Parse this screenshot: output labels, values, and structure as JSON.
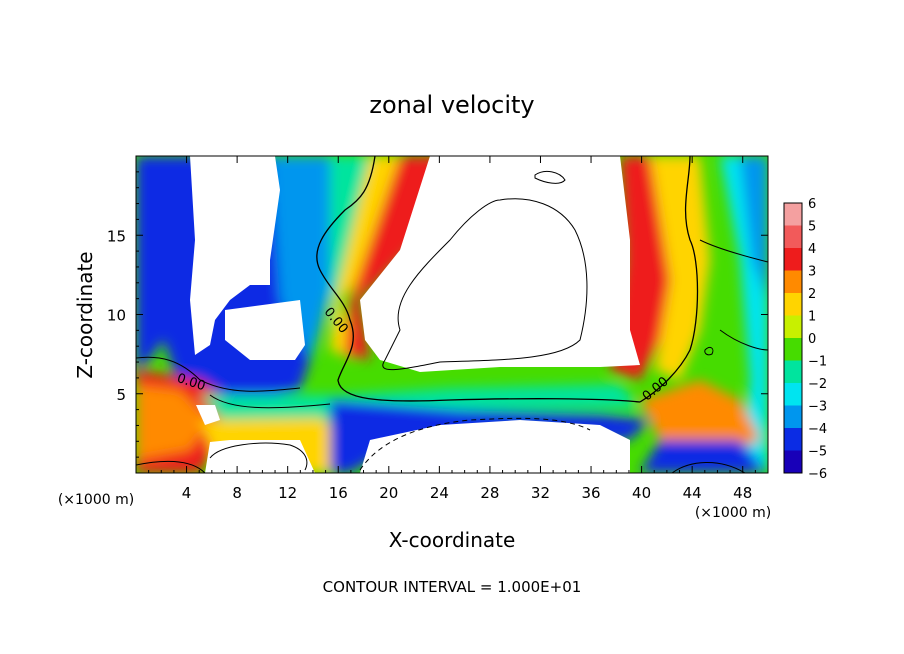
{
  "chart_data": {
    "type": "heatmap",
    "title": "zonal velocity",
    "xlabel": "X-coordinate",
    "ylabel": "Z-coordinate",
    "x_unit_note": "(×1000 m)",
    "x_unit_note_right": "(×1000 m)",
    "footer": "CONTOUR INTERVAL = 1.000E+01",
    "xlim": [
      0,
      50
    ],
    "ylim": [
      0,
      20
    ],
    "x_ticks": [
      4,
      8,
      12,
      16,
      20,
      24,
      28,
      32,
      36,
      40,
      44,
      48
    ],
    "y_ticks": [
      5,
      10,
      15
    ],
    "colorbar": {
      "levels": [
        6,
        5,
        4,
        3,
        2,
        1,
        0,
        -1,
        -2,
        -3,
        -4,
        -5,
        -6
      ],
      "colors": [
        "#f4a0a0",
        "#f25a5a",
        "#ee1c1c",
        "#ff8a00",
        "#ffd400",
        "#c8f000",
        "#46dc00",
        "#00e49e",
        "#00e4f0",
        "#0096ee",
        "#0b2ce4",
        "#1800b8",
        "#6a0aa0"
      ]
    },
    "contour_labels": [
      "0.00",
      "0.00",
      "0.00",
      "0.00"
    ],
    "fields": [
      {
        "region": "left-upper",
        "value": -6,
        "x": [
          1,
          10
        ],
        "z": [
          5,
          20
        ]
      },
      {
        "region": "lower-left",
        "value": 6,
        "x": [
          0,
          6
        ],
        "z": [
          0,
          6
        ]
      },
      {
        "region": "central-jet",
        "value": 3,
        "x": [
          16,
          40
        ],
        "z": [
          4,
          20
        ]
      },
      {
        "region": "central-core",
        "value": 8,
        "x": [
          18,
          38
        ],
        "z": [
          6,
          18
        ]
      },
      {
        "region": "bottom-center",
        "value": -8,
        "x": [
          18,
          38
        ],
        "z": [
          0,
          4
        ]
      },
      {
        "region": "right-column",
        "value": 1,
        "x": [
          38,
          50
        ],
        "z": [
          0,
          20
        ]
      }
    ]
  }
}
